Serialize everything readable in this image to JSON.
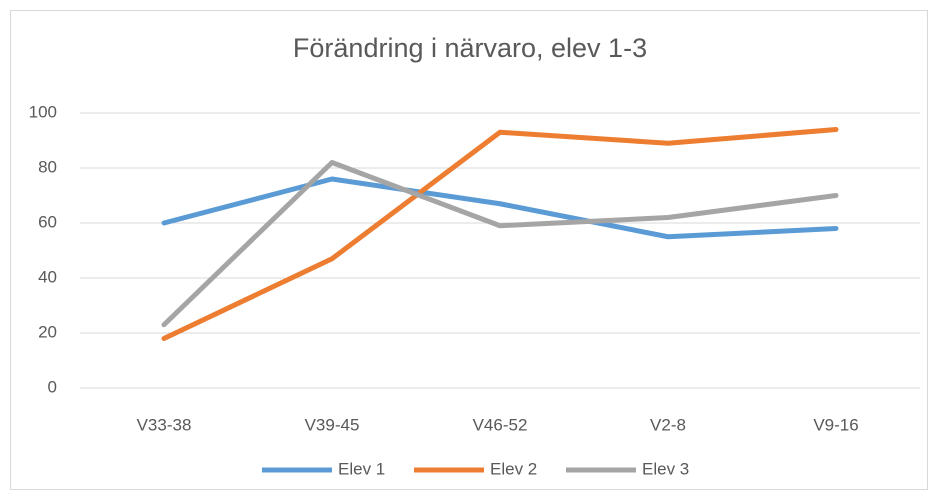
{
  "chart_data": {
    "type": "line",
    "title": "Förändring i närvaro, elev 1-3",
    "categories": [
      "V33-38",
      "V39-45",
      "V46-52",
      "V2-8",
      "V9-16"
    ],
    "series": [
      {
        "name": "Elev 1",
        "color": "#5b9bd5",
        "values": [
          60,
          76,
          67,
          55,
          58
        ]
      },
      {
        "name": "Elev 2",
        "color": "#ed7d31",
        "values": [
          18,
          47,
          93,
          89,
          94
        ]
      },
      {
        "name": "Elev 3",
        "color": "#a5a5a5",
        "values": [
          23,
          82,
          59,
          62,
          70
        ]
      }
    ],
    "ylim": [
      0,
      100
    ],
    "yticks": [
      0,
      20,
      40,
      60,
      80,
      100
    ],
    "grid": true,
    "legend": "bottom"
  }
}
